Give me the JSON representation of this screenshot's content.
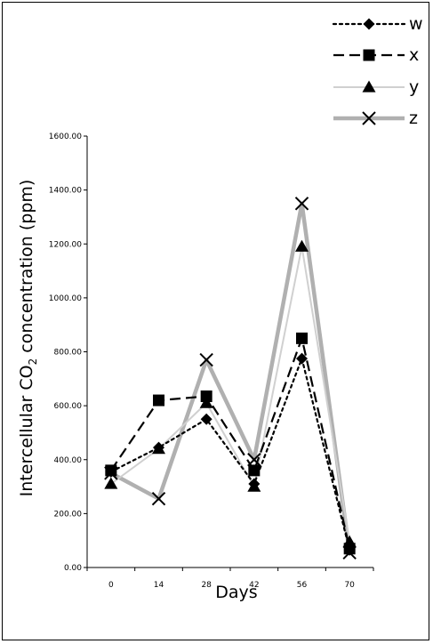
{
  "chart_data": {
    "type": "line",
    "x": [
      0,
      14,
      28,
      42,
      56,
      70
    ],
    "x_tick_labels": [
      "0",
      "14",
      "28",
      "42",
      "56",
      "70"
    ],
    "xlabel": "Days",
    "ylabel_parts": [
      "Intercellular CO",
      "2",
      " concentration (ppm)"
    ],
    "ylim": [
      0,
      1600
    ],
    "y_ticks": [
      0,
      200,
      400,
      600,
      800,
      1000,
      1200,
      1400,
      1600
    ],
    "y_tick_labels": [
      "0.00",
      "200.00",
      "400.00",
      "600.00",
      "800.00",
      "1000.00",
      "1200.00",
      "1400.00",
      "1600.00"
    ],
    "grid": false,
    "legend_position": "top-right",
    "series": [
      {
        "name": "w",
        "values": [
          355,
          445,
          550,
          310,
          775,
          65
        ],
        "marker": "diamond",
        "line": "dotted",
        "color": "#000000"
      },
      {
        "name": "x",
        "values": [
          360,
          620,
          635,
          360,
          850,
          70
        ],
        "marker": "square",
        "line": "dashed",
        "color": "#000000"
      },
      {
        "name": "y",
        "values": [
          310,
          440,
          610,
          300,
          1190,
          95
        ],
        "marker": "triangle",
        "line": "solid-light-gray",
        "color": "#c8c8c8"
      },
      {
        "name": "z",
        "values": [
          350,
          255,
          770,
          400,
          1350,
          55
        ],
        "marker": "x",
        "line": "thick-gray",
        "color": "#a8a8a8"
      }
    ]
  }
}
